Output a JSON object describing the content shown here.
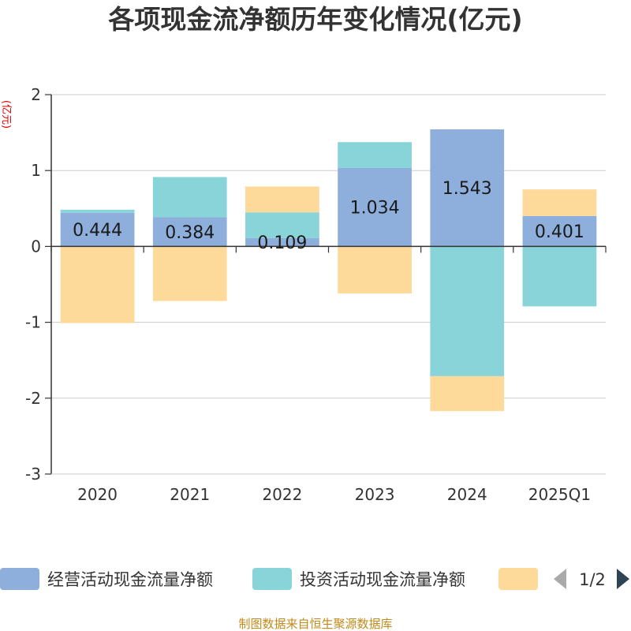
{
  "chart_data": {
    "type": "bar",
    "stacked": true,
    "title": "各项现金流净额历年变化情况(亿元)",
    "ylabel": "(亿元)",
    "xlabel": "",
    "ylim": [
      -3,
      2
    ],
    "yticks": [
      2,
      1,
      0,
      -1,
      -2,
      -3
    ],
    "categories": [
      "2020",
      "2021",
      "2022",
      "2023",
      "2024",
      "2025Q1"
    ],
    "series": [
      {
        "name": "经营活动现金流量净额",
        "color": "#8eaedb",
        "values": [
          0.444,
          0.384,
          0.109,
          1.034,
          1.543,
          0.401
        ],
        "labels": [
          "0.444",
          "0.384",
          "0.109",
          "1.034",
          "1.543",
          "0.401"
        ]
      },
      {
        "name": "投资活动现金流量净额",
        "color": "#88d4d8",
        "values": [
          0.04,
          0.53,
          0.34,
          0.34,
          -1.71,
          -0.79
        ]
      },
      {
        "name": "",
        "color": "#fdd99a",
        "values": [
          -1.01,
          -0.72,
          0.34,
          -0.62,
          -0.46,
          0.35
        ]
      }
    ],
    "legend": {
      "position": "bottom",
      "page": "1/2"
    },
    "source": "制图数据来自恒生聚源数据库"
  }
}
